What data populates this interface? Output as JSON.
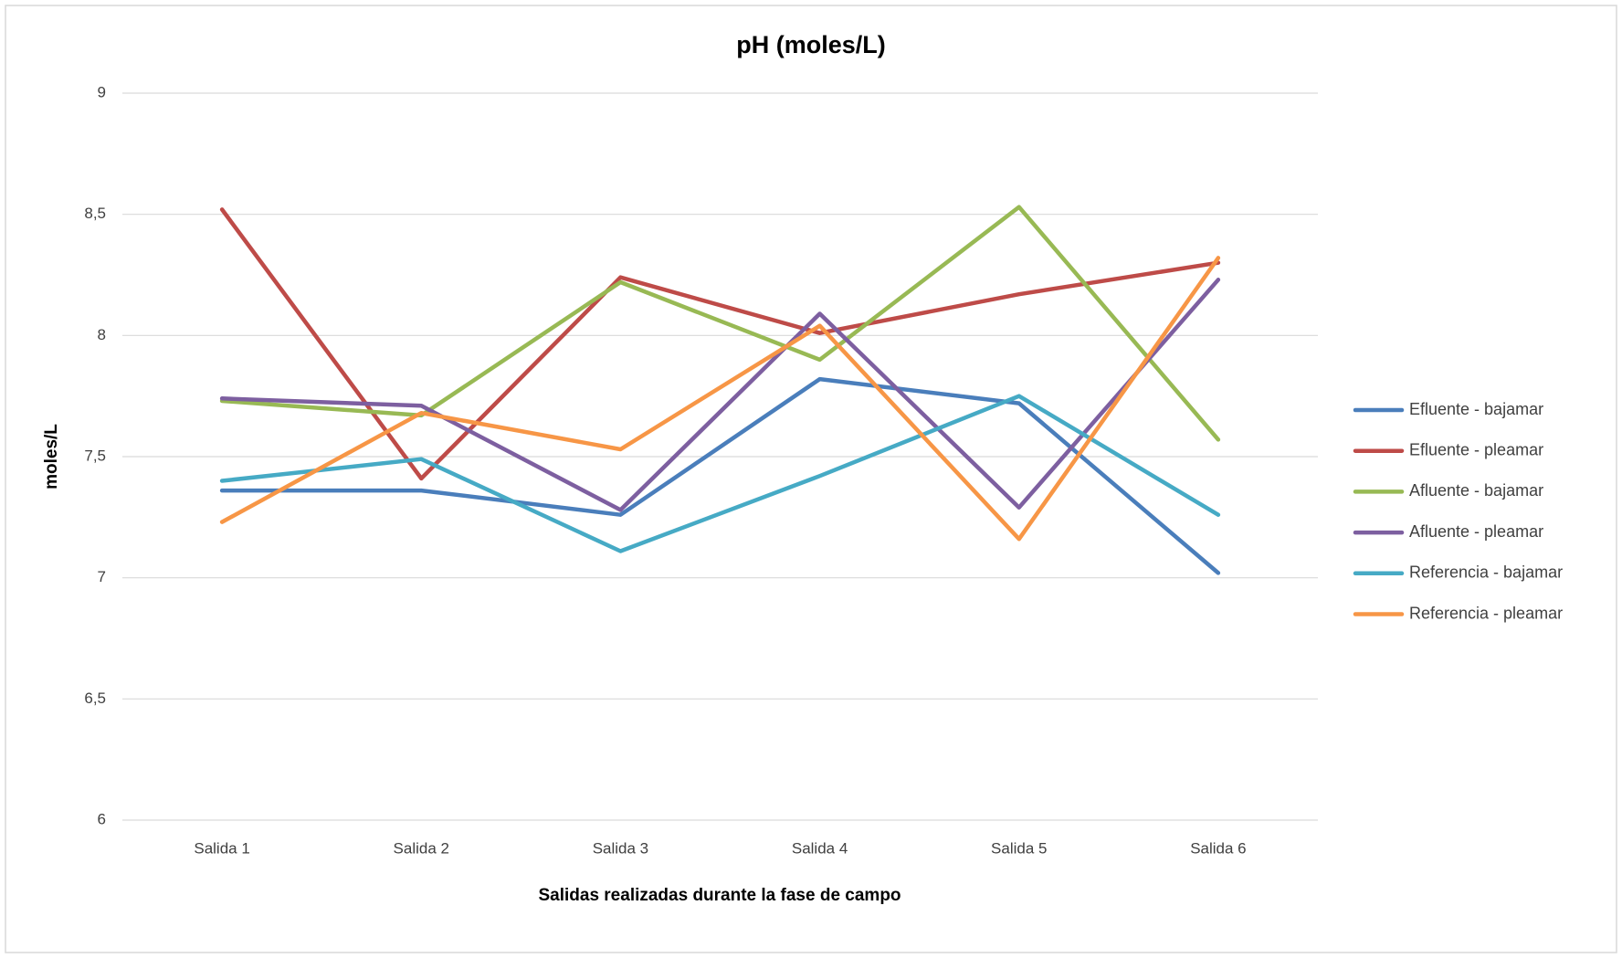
{
  "chart_data": {
    "type": "line",
    "title": "pH (moles/L)",
    "x_label": "Salidas realizadas durante la fase de campo",
    "y_label": "moles/L",
    "categories": [
      "Salida 1",
      "Salida 2",
      "Salida 3",
      "Salida 4",
      "Salida 5",
      "Salida 6"
    ],
    "series": [
      {
        "name": "Efluente - bajamar",
        "color": "#4a7ebb",
        "values": [
          7.36,
          7.36,
          7.26,
          7.82,
          7.72,
          7.02
        ]
      },
      {
        "name": "Efluente - pleamar",
        "color": "#be4b48",
        "values": [
          8.52,
          7.41,
          8.24,
          8.01,
          8.17,
          8.3
        ]
      },
      {
        "name": "Afluente - bajamar",
        "color": "#98b954",
        "values": [
          7.73,
          7.67,
          8.22,
          7.9,
          8.53,
          7.57
        ]
      },
      {
        "name": "Afluente - pleamar",
        "color": "#7d5fa0",
        "values": [
          7.74,
          7.71,
          7.28,
          8.09,
          7.29,
          8.23
        ]
      },
      {
        "name": "Referencia - bajamar",
        "color": "#46aac5",
        "values": [
          7.4,
          7.49,
          7.11,
          7.42,
          7.75,
          7.26
        ]
      },
      {
        "name": "Referencia - pleamar",
        "color": "#f79646",
        "values": [
          7.23,
          7.68,
          7.53,
          8.04,
          7.16,
          8.32
        ]
      }
    ],
    "ylim": [
      6,
      9
    ],
    "yticks": [
      6,
      {
        "value": 6.5,
        "label": "6,5"
      },
      7,
      {
        "value": 7.5,
        "label": "7,5"
      },
      8,
      {
        "value": 8.5,
        "label": "8,5"
      },
      9
    ],
    "grid": true,
    "legend": "right"
  }
}
